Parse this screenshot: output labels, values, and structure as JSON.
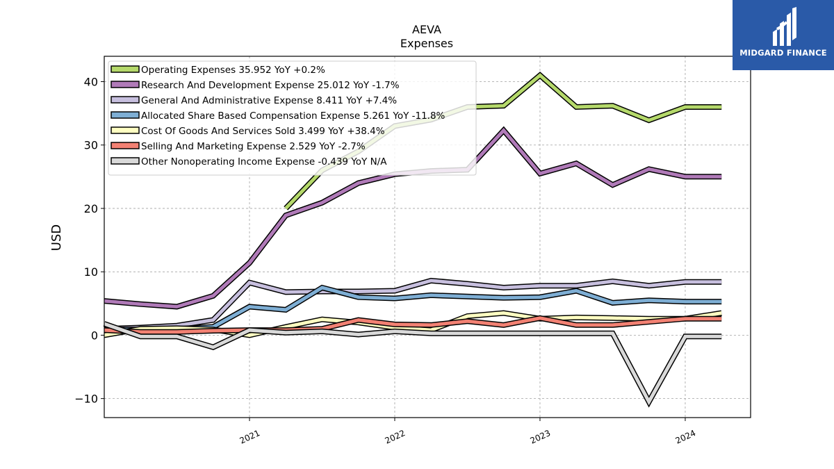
{
  "brand": {
    "name": "MIDGARD FINANCE",
    "bg_color": "#2a5aa8"
  },
  "chart_data": {
    "type": "line",
    "title": "AEVA",
    "subtitle": "Expenses",
    "xlabel": "",
    "ylabel": "USD",
    "ylim": [
      -13,
      44
    ],
    "xlim": [
      2020.0,
      2024.45
    ],
    "y_ticks": [
      -10,
      0,
      10,
      20,
      30,
      40
    ],
    "y_tick_labels": [
      "−10",
      "0",
      "10",
      "20",
      "30",
      "40"
    ],
    "x_ticks": [
      2021,
      2022,
      2023,
      2024
    ],
    "x_tick_labels": [
      "2021",
      "2022",
      "2023",
      "2024"
    ],
    "grid": true,
    "legend_position": "upper-left",
    "series": [
      {
        "name": "Operating Expenses",
        "legend": "Operating Expenses  35.952 YoY +0.2%",
        "color": "#b5d96b",
        "x": [
          2021.25,
          2021.5,
          2021.75,
          2022.0,
          2022.25,
          2022.5,
          2022.75,
          2023.0,
          2023.25,
          2023.5,
          2023.75,
          2024.0,
          2024.25
        ],
        "y": [
          20.0,
          26.0,
          29.0,
          33.0,
          34.0,
          36.0,
          36.2,
          41.0,
          36.0,
          36.2,
          33.9,
          36.0,
          36.0
        ]
      },
      {
        "name": "Research And Development Expense",
        "legend": "Research And Development Expense  25.012 YoY -1.7%",
        "color": "#b07ab8",
        "x": [
          2020.0,
          2020.25,
          2020.5,
          2020.75,
          2021.0,
          2021.25,
          2021.5,
          2021.75,
          2022.0,
          2022.25,
          2022.5,
          2022.75,
          2023.0,
          2023.25,
          2023.5,
          2023.75,
          2024.0,
          2024.25
        ],
        "y": [
          5.4,
          4.9,
          4.5,
          6.2,
          11.4,
          18.9,
          20.9,
          24.0,
          25.4,
          25.9,
          26.1,
          32.3,
          25.5,
          27.1,
          23.7,
          26.2,
          25.0,
          25.0
        ]
      },
      {
        "name": "General And Administrative Expense",
        "legend": "General And Administrative Expense  8.411 YoY +7.4%",
        "color": "#c7bfde",
        "x": [
          2020.0,
          2020.25,
          2020.5,
          2020.75,
          2021.0,
          2021.25,
          2021.5,
          2021.75,
          2022.0,
          2022.25,
          2022.5,
          2022.75,
          2023.0,
          2023.25,
          2023.5,
          2023.75,
          2024.0,
          2024.25
        ],
        "y": [
          1.0,
          1.2,
          1.5,
          2.4,
          8.3,
          6.8,
          6.9,
          6.9,
          7.0,
          8.6,
          8.1,
          7.5,
          7.8,
          7.8,
          8.5,
          7.8,
          8.4,
          8.4
        ]
      },
      {
        "name": "Allocated Share Based Compensation Expense",
        "legend": "Allocated Share Based Compensation Expense  5.261 YoY -11.8%",
        "color": "#7eaed4",
        "x": [
          2020.0,
          2020.25,
          2020.5,
          2020.75,
          2021.0,
          2021.25,
          2021.5,
          2021.75,
          2022.0,
          2022.25,
          2022.5,
          2022.75,
          2023.0,
          2023.25,
          2023.5,
          2023.75,
          2024.0,
          2024.25
        ],
        "y": [
          0.9,
          0.9,
          1.0,
          1.3,
          4.5,
          4.0,
          7.5,
          6.0,
          5.8,
          6.3,
          6.1,
          5.9,
          6.0,
          7.0,
          5.1,
          5.5,
          5.3,
          5.3
        ]
      },
      {
        "name": "Cost Of Goods And Services Sold",
        "legend": "Cost Of Goods And Services Sold  3.499 YoY +38.4%",
        "color": "#ffffc2",
        "x": [
          2020.0,
          2020.25,
          2020.5,
          2020.75,
          2021.0,
          2021.25,
          2021.5,
          2021.75,
          2022.0,
          2022.25,
          2022.5,
          2022.75,
          2023.0,
          2023.25,
          2023.5,
          2023.75,
          2024.0,
          2024.25
        ],
        "y": [
          0.0,
          1.0,
          1.1,
          0.9,
          0.0,
          1.3,
          2.5,
          2.0,
          1.2,
          0.8,
          3.0,
          3.5,
          2.6,
          2.8,
          2.7,
          2.6,
          2.6,
          3.5
        ]
      },
      {
        "name": "Selling And Marketing Expense",
        "legend": "Selling And Marketing Expense  2.529 YoY -2.7%",
        "color": "#f28173",
        "x": [
          2020.0,
          2020.25,
          2020.5,
          2020.75,
          2021.0,
          2021.25,
          2021.5,
          2021.75,
          2022.0,
          2022.25,
          2022.5,
          2022.75,
          2023.0,
          2023.25,
          2023.5,
          2023.75,
          2024.0,
          2024.25
        ],
        "y": [
          0.8,
          0.5,
          0.5,
          0.7,
          0.8,
          0.8,
          1.0,
          2.4,
          1.7,
          1.6,
          2.2,
          1.6,
          2.7,
          1.6,
          1.6,
          2.1,
          2.6,
          2.6
        ]
      },
      {
        "name": "Other Nonoperating Income Expense",
        "legend": "Other Nonoperating Income Expense  -0.439 YoY N/A",
        "color": "#d9d9d9",
        "x": [
          2020.0,
          2020.25,
          2020.5,
          2020.75,
          2021.0,
          2021.25,
          2021.5,
          2021.75,
          2022.0,
          2022.25,
          2022.5,
          2022.75,
          2023.0,
          2023.25,
          2023.5,
          2023.75,
          2024.0,
          2024.25
        ],
        "y": [
          1.8,
          -0.2,
          -0.2,
          -1.9,
          0.8,
          0.4,
          0.6,
          0.1,
          0.6,
          0.3,
          0.3,
          0.3,
          0.3,
          0.3,
          0.3,
          -10.5,
          -0.2,
          -0.2
        ]
      }
    ]
  }
}
